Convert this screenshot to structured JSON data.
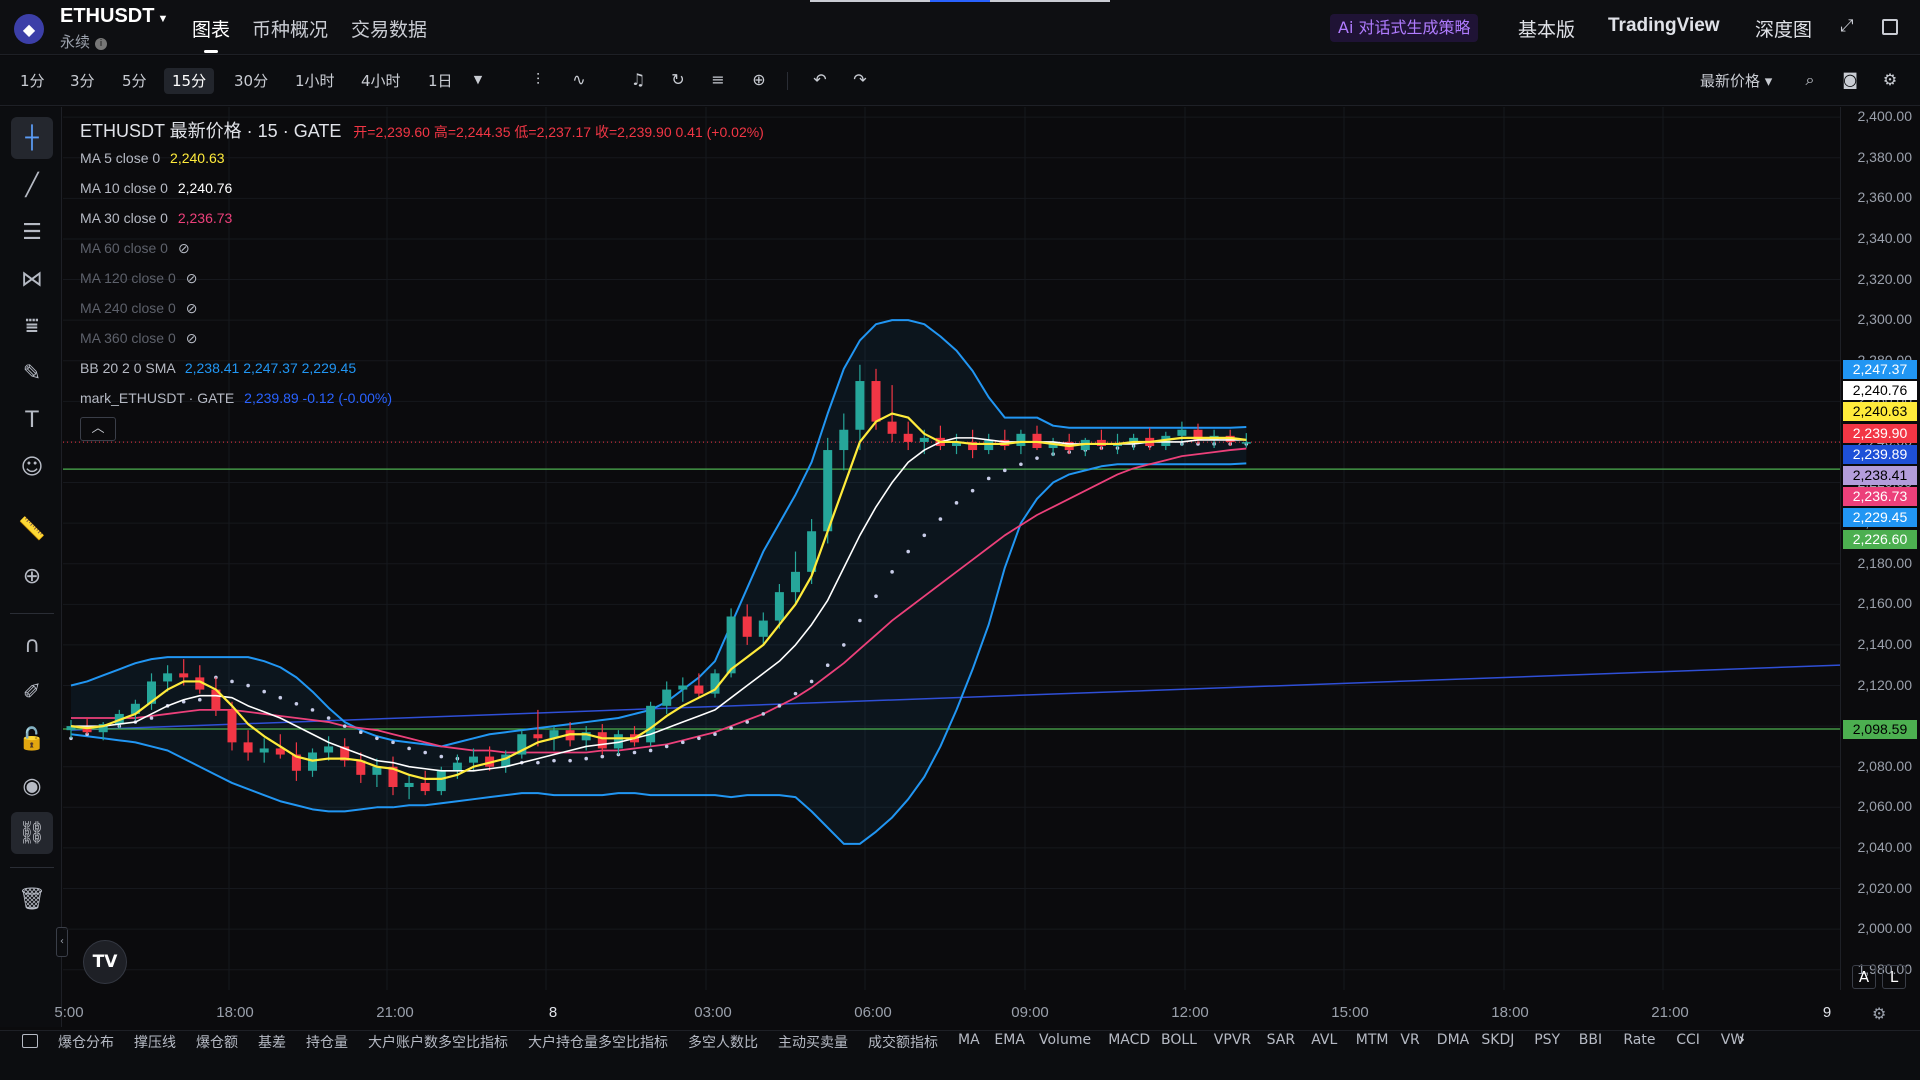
{
  "header": {
    "symbol": "ETHUSDT",
    "symbol_sub": "永续",
    "logo_glyph": "◆",
    "nav": [
      "图表",
      "币种概况",
      "交易数据"
    ],
    "ai_label": "Ai 对话式生成策略",
    "right": [
      "基本版",
      "TradingView",
      "深度图"
    ]
  },
  "toolbar": {
    "timeframes": [
      "1分",
      "3分",
      "5分",
      "15分",
      "30分",
      "1小时",
      "4小时",
      "1日"
    ],
    "active_timeframe": "15分",
    "price_type": "最新价格 ▾"
  },
  "legend": {
    "title": "ETHUSDT 最新价格 · 15 · GATE",
    "ohlc": "开=2,239.60  高=2,244.35  低=2,237.17  收=2,239.90  0.41 (+0.02%)",
    "ma5_label": "MA 5 close 0",
    "ma5_value": "2,240.63",
    "ma10_label": "MA 10 close 0",
    "ma10_value": "2,240.76",
    "ma30_label": "MA 30 close 0",
    "ma30_value": "2,236.73",
    "ma60_label": "MA 60 close 0",
    "ma120_label": "MA 120 close 0",
    "ma240_label": "MA 240 close 0",
    "ma360_label": "MA 360 close 0",
    "bb_label": "BB 20 2 0 SMA",
    "bb_values": "2,238.41  2,247.37  2,229.45",
    "mark_label": "mark_ETHUSDT · GATE",
    "mark_values": "2,239.89  -0.12 (-0.00%)"
  },
  "price_axis": {
    "ticks": [
      "2,400.00",
      "2,380.00",
      "2,360.00",
      "2,340.00",
      "2,320.00",
      "2,300.00",
      "2,280.00",
      "2,260.00",
      "2,240.00",
      "2,220.00",
      "2,200.00",
      "2,180.00",
      "2,160.00",
      "2,140.00",
      "2,120.00",
      "2,100.00",
      "2,080.00",
      "2,060.00",
      "2,040.00",
      "2,020.00",
      "2,000.00",
      "1,980.00"
    ],
    "labels": [
      {
        "text": "2,247.37",
        "bg": "#2196f3",
        "fg": "#ffffff"
      },
      {
        "text": "2,240.76",
        "bg": "#ffffff",
        "fg": "#000000"
      },
      {
        "text": "2,240.63",
        "bg": "#ffeb3b",
        "fg": "#000000"
      },
      {
        "text": "2,239.90",
        "bg": "#f23645",
        "fg": "#ffffff"
      },
      {
        "text": "2,239.89",
        "bg": "#1e50d8",
        "fg": "#ffffff"
      },
      {
        "text": "2,238.41",
        "bg": "#b39ddb",
        "fg": "#000000"
      },
      {
        "text": "2,236.73",
        "bg": "#ec407a",
        "fg": "#ffffff"
      },
      {
        "text": "2,229.45",
        "bg": "#2196f3",
        "fg": "#ffffff"
      },
      {
        "text": "2,226.60",
        "bg": "#4caf50",
        "fg": "#ffffff"
      },
      {
        "text": "2,098.59",
        "bg": "#4caf50",
        "fg": "#000000"
      }
    ]
  },
  "time_axis": [
    "5:00",
    "18:00",
    "21:00",
    "8",
    "03:00",
    "06:00",
    "09:00",
    "12:00",
    "15:00",
    "18:00",
    "21:00",
    "9"
  ],
  "bottom_indicators": [
    "爆仓分布",
    "撑压线",
    "爆仓额",
    "基差",
    "持仓量",
    "大户账户数多空比指标",
    "大户持仓量多空比指标",
    "多空人数比",
    "主动买卖量",
    "成交额指标",
    "MA",
    "EMA",
    "Volume",
    "MACD",
    "BOLL",
    "VPVR",
    "SAR",
    "AVL",
    "MTM",
    "VR",
    "DMA",
    "SKDJ",
    "PSY",
    "BBI",
    "Rate",
    "CCI",
    "VW"
  ],
  "tv_logo": "TV",
  "scale_buttons": [
    "A",
    "L"
  ],
  "colors": {
    "up": "#26a69a",
    "down": "#f23645",
    "ma5": "#ffeb3b",
    "ma10": "#ffffff",
    "ma30": "#ec407a",
    "bb": "#2196f3",
    "sar": "#c8cce8",
    "trend": "#2f4fd6",
    "hline": "#4caf50"
  },
  "chart_data": {
    "type": "candlestick",
    "symbol": "ETHUSDT",
    "interval": "15",
    "ylim": [
      1970,
      2405
    ],
    "candles": [
      {
        "o": 2098,
        "h": 2103,
        "l": 2094,
        "c": 2100
      },
      {
        "o": 2100,
        "h": 2104,
        "l": 2096,
        "c": 2097
      },
      {
        "o": 2097,
        "h": 2102,
        "l": 2093,
        "c": 2101
      },
      {
        "o": 2101,
        "h": 2108,
        "l": 2099,
        "c": 2106
      },
      {
        "o": 2106,
        "h": 2113,
        "l": 2103,
        "c": 2111
      },
      {
        "o": 2111,
        "h": 2126,
        "l": 2108,
        "c": 2122
      },
      {
        "o": 2122,
        "h": 2130,
        "l": 2117,
        "c": 2126
      },
      {
        "o": 2126,
        "h": 2133,
        "l": 2120,
        "c": 2124
      },
      {
        "o": 2124,
        "h": 2130,
        "l": 2116,
        "c": 2118
      },
      {
        "o": 2118,
        "h": 2124,
        "l": 2105,
        "c": 2108
      },
      {
        "o": 2108,
        "h": 2112,
        "l": 2088,
        "c": 2092
      },
      {
        "o": 2092,
        "h": 2098,
        "l": 2083,
        "c": 2087
      },
      {
        "o": 2087,
        "h": 2094,
        "l": 2082,
        "c": 2089
      },
      {
        "o": 2089,
        "h": 2096,
        "l": 2084,
        "c": 2086
      },
      {
        "o": 2086,
        "h": 2092,
        "l": 2073,
        "c": 2078
      },
      {
        "o": 2078,
        "h": 2089,
        "l": 2075,
        "c": 2087
      },
      {
        "o": 2087,
        "h": 2095,
        "l": 2083,
        "c": 2090
      },
      {
        "o": 2090,
        "h": 2094,
        "l": 2080,
        "c": 2083
      },
      {
        "o": 2083,
        "h": 2087,
        "l": 2072,
        "c": 2076
      },
      {
        "o": 2076,
        "h": 2084,
        "l": 2070,
        "c": 2080
      },
      {
        "o": 2080,
        "h": 2085,
        "l": 2066,
        "c": 2070
      },
      {
        "o": 2070,
        "h": 2076,
        "l": 2064,
        "c": 2072
      },
      {
        "o": 2072,
        "h": 2078,
        "l": 2066,
        "c": 2068
      },
      {
        "o": 2068,
        "h": 2080,
        "l": 2066,
        "c": 2078
      },
      {
        "o": 2078,
        "h": 2086,
        "l": 2074,
        "c": 2082
      },
      {
        "o": 2082,
        "h": 2089,
        "l": 2078,
        "c": 2085
      },
      {
        "o": 2085,
        "h": 2090,
        "l": 2078,
        "c": 2080
      },
      {
        "o": 2080,
        "h": 2088,
        "l": 2077,
        "c": 2086
      },
      {
        "o": 2086,
        "h": 2098,
        "l": 2084,
        "c": 2096
      },
      {
        "o": 2096,
        "h": 2108,
        "l": 2090,
        "c": 2094
      },
      {
        "o": 2094,
        "h": 2100,
        "l": 2088,
        "c": 2098
      },
      {
        "o": 2098,
        "h": 2102,
        "l": 2090,
        "c": 2093
      },
      {
        "o": 2093,
        "h": 2100,
        "l": 2088,
        "c": 2097
      },
      {
        "o": 2097,
        "h": 2101,
        "l": 2086,
        "c": 2089
      },
      {
        "o": 2089,
        "h": 2098,
        "l": 2086,
        "c": 2096
      },
      {
        "o": 2096,
        "h": 2100,
        "l": 2090,
        "c": 2092
      },
      {
        "o": 2092,
        "h": 2112,
        "l": 2090,
        "c": 2110
      },
      {
        "o": 2110,
        "h": 2122,
        "l": 2106,
        "c": 2118
      },
      {
        "o": 2118,
        "h": 2124,
        "l": 2112,
        "c": 2120
      },
      {
        "o": 2120,
        "h": 2126,
        "l": 2114,
        "c": 2116
      },
      {
        "o": 2116,
        "h": 2128,
        "l": 2114,
        "c": 2126
      },
      {
        "o": 2126,
        "h": 2158,
        "l": 2124,
        "c": 2154
      },
      {
        "o": 2154,
        "h": 2160,
        "l": 2140,
        "c": 2144
      },
      {
        "o": 2144,
        "h": 2156,
        "l": 2140,
        "c": 2152
      },
      {
        "o": 2152,
        "h": 2170,
        "l": 2148,
        "c": 2166
      },
      {
        "o": 2166,
        "h": 2186,
        "l": 2160,
        "c": 2176
      },
      {
        "o": 2176,
        "h": 2202,
        "l": 2170,
        "c": 2196
      },
      {
        "o": 2196,
        "h": 2242,
        "l": 2190,
        "c": 2236
      },
      {
        "o": 2236,
        "h": 2254,
        "l": 2226,
        "c": 2246
      },
      {
        "o": 2246,
        "h": 2278,
        "l": 2236,
        "c": 2270
      },
      {
        "o": 2270,
        "h": 2276,
        "l": 2246,
        "c": 2250
      },
      {
        "o": 2250,
        "h": 2268,
        "l": 2240,
        "c": 2244
      },
      {
        "o": 2244,
        "h": 2250,
        "l": 2236,
        "c": 2240
      },
      {
        "o": 2240,
        "h": 2246,
        "l": 2234,
        "c": 2242
      },
      {
        "o": 2242,
        "h": 2248,
        "l": 2236,
        "c": 2238
      },
      {
        "o": 2238,
        "h": 2244,
        "l": 2234,
        "c": 2240
      },
      {
        "o": 2240,
        "h": 2246,
        "l": 2232,
        "c": 2236
      },
      {
        "o": 2236,
        "h": 2244,
        "l": 2234,
        "c": 2241
      },
      {
        "o": 2241,
        "h": 2246,
        "l": 2236,
        "c": 2238
      },
      {
        "o": 2238,
        "h": 2246,
        "l": 2234,
        "c": 2244
      },
      {
        "o": 2244,
        "h": 2248,
        "l": 2236,
        "c": 2237
      },
      {
        "o": 2237,
        "h": 2242,
        "l": 2233,
        "c": 2240
      },
      {
        "o": 2240,
        "h": 2244,
        "l": 2234,
        "c": 2236
      },
      {
        "o": 2236,
        "h": 2242,
        "l": 2233,
        "c": 2241
      },
      {
        "o": 2241,
        "h": 2246,
        "l": 2236,
        "c": 2238
      },
      {
        "o": 2238,
        "h": 2244,
        "l": 2234,
        "c": 2239
      },
      {
        "o": 2239,
        "h": 2244,
        "l": 2236,
        "c": 2242
      },
      {
        "o": 2242,
        "h": 2247,
        "l": 2236,
        "c": 2238
      },
      {
        "o": 2238,
        "h": 2245,
        "l": 2236,
        "c": 2243
      },
      {
        "o": 2243,
        "h": 2250,
        "l": 2238,
        "c": 2246
      },
      {
        "o": 2246,
        "h": 2249,
        "l": 2239,
        "c": 2241
      },
      {
        "o": 2241,
        "h": 2246,
        "l": 2237,
        "c": 2243
      },
      {
        "o": 2243,
        "h": 2246,
        "l": 2238,
        "c": 2240
      },
      {
        "o": 2239.6,
        "h": 2244.35,
        "l": 2237.17,
        "c": 2239.9
      }
    ],
    "lines": {
      "ma5": [
        2100,
        2099,
        2100,
        2103,
        2106,
        2112,
        2118,
        2122,
        2122,
        2118,
        2110,
        2101,
        2095,
        2090,
        2085,
        2083,
        2084,
        2084,
        2083,
        2080,
        2079,
        2076,
        2074,
        2074,
        2076,
        2080,
        2082,
        2084,
        2088,
        2092,
        2094,
        2096,
        2096,
        2094,
        2094,
        2094,
        2099,
        2105,
        2110,
        2114,
        2118,
        2128,
        2134,
        2140,
        2150,
        2160,
        2174,
        2196,
        2218,
        2240,
        2250,
        2254,
        2252,
        2244,
        2240,
        2240,
        2239,
        2239,
        2239,
        2240,
        2240,
        2239,
        2238,
        2239,
        2239,
        2239,
        2240,
        2240,
        2241,
        2242,
        2242,
        2242,
        2242,
        2241
      ],
      "ma10": [
        2100,
        2100,
        2100,
        2101,
        2102,
        2106,
        2110,
        2113,
        2115,
        2115,
        2114,
        2110,
        2107,
        2104,
        2100,
        2096,
        2092,
        2089,
        2086,
        2083,
        2082,
        2080,
        2079,
        2078,
        2078,
        2078,
        2079,
        2080,
        2082,
        2084,
        2086,
        2088,
        2090,
        2091,
        2092,
        2094,
        2096,
        2099,
        2102,
        2105,
        2108,
        2114,
        2120,
        2126,
        2132,
        2140,
        2150,
        2162,
        2178,
        2194,
        2208,
        2220,
        2230,
        2236,
        2240,
        2242,
        2242,
        2241,
        2240,
        2240,
        2240,
        2240,
        2239,
        2239,
        2239,
        2239,
        2239,
        2240,
        2240,
        2240,
        2241,
        2241,
        2241,
        2241
      ],
      "ma30": [
        2104,
        2104,
        2104,
        2104,
        2104,
        2105,
        2106,
        2107,
        2108,
        2108,
        2108,
        2107,
        2106,
        2105,
        2104,
        2103,
        2102,
        2100,
        2099,
        2098,
        2096,
        2094,
        2092,
        2090,
        2089,
        2088,
        2088,
        2087,
        2087,
        2087,
        2087,
        2087,
        2087,
        2088,
        2088,
        2089,
        2090,
        2091,
        2093,
        2095,
        2097,
        2100,
        2103,
        2106,
        2110,
        2114,
        2119,
        2125,
        2131,
        2138,
        2145,
        2152,
        2158,
        2164,
        2170,
        2176,
        2182,
        2188,
        2194,
        2199,
        2204,
        2208,
        2212,
        2216,
        2220,
        2224,
        2227,
        2229,
        2231,
        2233,
        2234,
        2235,
        2236,
        2236.73
      ],
      "bb_upper": [
        2120,
        2122,
        2125,
        2128,
        2131,
        2133,
        2134,
        2134,
        2134,
        2134,
        2134,
        2134,
        2132,
        2129,
        2124,
        2117,
        2109,
        2102,
        2098,
        2095,
        2093,
        2092,
        2091,
        2090,
        2092,
        2094,
        2096,
        2097,
        2098,
        2099,
        2100,
        2101,
        2102,
        2103,
        2104,
        2106,
        2108,
        2112,
        2118,
        2124,
        2132,
        2150,
        2168,
        2186,
        2200,
        2214,
        2230,
        2254,
        2276,
        2290,
        2298,
        2300,
        2300,
        2298,
        2292,
        2285,
        2275,
        2262,
        2252,
        2252,
        2252,
        2248,
        2247,
        2247,
        2247,
        2247,
        2247,
        2247,
        2247,
        2247,
        2247,
        2247,
        2247,
        2247.37
      ],
      "bb_lower": [
        2096,
        2095,
        2094,
        2093,
        2092,
        2090,
        2088,
        2084,
        2080,
        2076,
        2072,
        2069,
        2066,
        2063,
        2061,
        2059,
        2058,
        2058,
        2059,
        2060,
        2060,
        2061,
        2061,
        2062,
        2063,
        2064,
        2065,
        2066,
        2067,
        2067,
        2066,
        2066,
        2066,
        2066,
        2067,
        2067,
        2066,
        2066,
        2066,
        2066,
        2066,
        2065,
        2066,
        2066,
        2066,
        2065,
        2058,
        2050,
        2042,
        2042,
        2048,
        2055,
        2064,
        2075,
        2090,
        2108,
        2128,
        2150,
        2178,
        2200,
        2212,
        2220,
        2224,
        2226,
        2228,
        2229,
        2229,
        2229,
        2229,
        2229,
        2229,
        2229,
        2229,
        2229.45
      ],
      "sar": [
        2094,
        2096,
        2098,
        2100,
        2102,
        2104,
        2110,
        2112,
        2113,
        2124,
        2122,
        2120,
        2117,
        2114,
        2111,
        2108,
        2104,
        2100,
        2097,
        2094,
        2092,
        2089,
        2087,
        2085,
        2084,
        2083,
        2082,
        2082,
        2082,
        2082,
        2083,
        2083,
        2084,
        2085,
        2086,
        2087,
        2088,
        2090,
        2092,
        2094,
        2096,
        2099,
        2102,
        2106,
        2110,
        2116,
        2122,
        2130,
        2140,
        2152,
        2164,
        2176,
        2186,
        2194,
        2202,
        2210,
        2216,
        2222,
        2226,
        2229,
        2232,
        2234,
        2235,
        2236,
        2237,
        2237,
        2238,
        2238,
        2239,
        2239,
        2239,
        2239,
        2239,
        2239
      ]
    },
    "horizontal_lines": [
      2098.59,
      2226.6
    ],
    "dotted_last_price": 2239.9,
    "trendline": {
      "start_candle": 0,
      "start_price": 2098,
      "end_candle": 144,
      "end_price": 2140
    }
  }
}
